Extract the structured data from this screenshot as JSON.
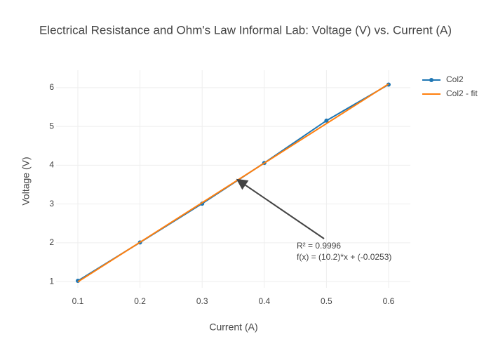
{
  "chart_data": {
    "type": "line",
    "title": "Electrical Resistance and Ohm's Law Informal Lab: Voltage (V) vs. Current (A)",
    "x_label": "Current (A)",
    "y_label": "Voltage (V)",
    "series": [
      {
        "name": "Col2",
        "color": "#1f77b4",
        "markers": true,
        "x": [
          0.1,
          0.2,
          0.3,
          0.4,
          0.5,
          0.6
        ],
        "values": [
          1.02,
          2.01,
          3.01,
          4.06,
          5.15,
          6.08
        ]
      },
      {
        "name": "Col2 - fit",
        "color": "#ff7f0e",
        "markers": false,
        "x": [
          0.1,
          0.6
        ],
        "values": [
          0.9947,
          6.0947
        ]
      }
    ],
    "annotation": [
      "R² = 0.9996",
      "f(x) = (10.2)*x + (-0.0253)"
    ],
    "xlim": [
      0.065,
      0.635
    ],
    "ylim": [
      0.84,
      6.45
    ],
    "xticks": [
      0.1,
      0.2,
      0.3,
      0.4,
      0.5,
      0.6
    ],
    "yticks": [
      1,
      2,
      3,
      4,
      5,
      6
    ],
    "grid": true
  }
}
